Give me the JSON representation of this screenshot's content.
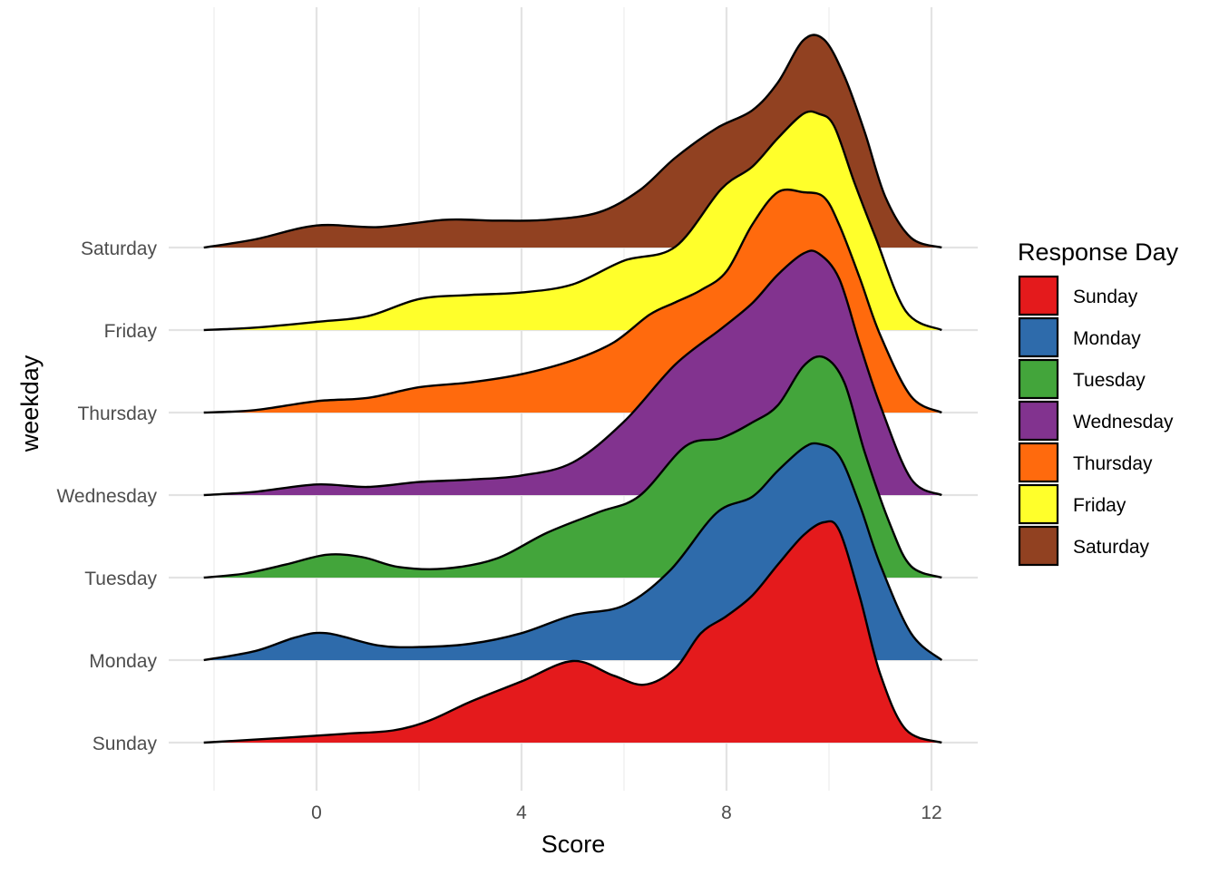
{
  "chart_data": {
    "type": "ridgeline",
    "xlabel": "Score",
    "ylabel": "weekday",
    "xlim": [
      -2.2,
      12.2
    ],
    "x_ticks": [
      0,
      4,
      8,
      12
    ],
    "x_gridlines": [
      -2,
      0,
      2,
      4,
      6,
      8,
      10,
      12
    ],
    "grid": true,
    "legend": {
      "title": "Response Day",
      "placement": "right",
      "entries": [
        "Sunday",
        "Monday",
        "Tuesday",
        "Wednesday",
        "Thursday",
        "Friday",
        "Saturday"
      ]
    },
    "categories": [
      "Sunday",
      "Monday",
      "Tuesday",
      "Wednesday",
      "Thursday",
      "Friday",
      "Saturday"
    ],
    "series": [
      {
        "name": "Sunday",
        "color": "#E41A1C",
        "points": [
          [
            -2.2,
            0.0
          ],
          [
            -0.6,
            0.06
          ],
          [
            0.6,
            0.11
          ],
          [
            1.5,
            0.15
          ],
          [
            2.2,
            0.27
          ],
          [
            3,
            0.5
          ],
          [
            4,
            0.75
          ],
          [
            5,
            1.0
          ],
          [
            5.8,
            0.82
          ],
          [
            6.4,
            0.71
          ],
          [
            7,
            0.91
          ],
          [
            7.5,
            1.34
          ],
          [
            8,
            1.55
          ],
          [
            8.5,
            1.8
          ],
          [
            9,
            2.18
          ],
          [
            9.5,
            2.54
          ],
          [
            9.9,
            2.7
          ],
          [
            10.2,
            2.6
          ],
          [
            10.6,
            1.79
          ],
          [
            11,
            0.84
          ],
          [
            11.5,
            0.16
          ],
          [
            12.2,
            0.0
          ]
        ]
      },
      {
        "name": "Monday",
        "color": "#2E6BAB",
        "points": [
          [
            -2.2,
            0.0
          ],
          [
            -1.2,
            0.11
          ],
          [
            -0.4,
            0.28
          ],
          [
            0.2,
            0.33
          ],
          [
            1.2,
            0.18
          ],
          [
            2,
            0.16
          ],
          [
            3,
            0.2
          ],
          [
            4,
            0.33
          ],
          [
            5,
            0.55
          ],
          [
            6,
            0.67
          ],
          [
            6.9,
            1.1
          ],
          [
            7.8,
            1.8
          ],
          [
            8.5,
            2.0
          ],
          [
            9,
            2.32
          ],
          [
            9.5,
            2.6
          ],
          [
            9.8,
            2.65
          ],
          [
            10.2,
            2.5
          ],
          [
            10.6,
            1.9
          ],
          [
            11,
            1.17
          ],
          [
            11.6,
            0.33
          ],
          [
            12.2,
            0.0
          ]
        ]
      },
      {
        "name": "Tuesday",
        "color": "#43A53B",
        "points": [
          [
            -2.2,
            0.0
          ],
          [
            -1.4,
            0.05
          ],
          [
            -0.6,
            0.16
          ],
          [
            0.2,
            0.28
          ],
          [
            0.9,
            0.25
          ],
          [
            1.6,
            0.13
          ],
          [
            2.5,
            0.11
          ],
          [
            3.5,
            0.23
          ],
          [
            4.5,
            0.55
          ],
          [
            5.5,
            0.8
          ],
          [
            6.3,
            1.0
          ],
          [
            7.2,
            1.61
          ],
          [
            7.9,
            1.71
          ],
          [
            8.5,
            1.9
          ],
          [
            9,
            2.11
          ],
          [
            9.5,
            2.59
          ],
          [
            9.9,
            2.7
          ],
          [
            10.3,
            2.39
          ],
          [
            10.7,
            1.53
          ],
          [
            11.2,
            0.64
          ],
          [
            11.6,
            0.14
          ],
          [
            12.2,
            0.0
          ]
        ]
      },
      {
        "name": "Wednesday",
        "color": "#82338F",
        "points": [
          [
            -2.2,
            0.0
          ],
          [
            -1.2,
            0.04
          ],
          [
            0,
            0.13
          ],
          [
            1,
            0.1
          ],
          [
            2,
            0.16
          ],
          [
            3,
            0.19
          ],
          [
            4,
            0.24
          ],
          [
            5,
            0.4
          ],
          [
            6,
            0.9
          ],
          [
            7,
            1.6
          ],
          [
            7.9,
            2.04
          ],
          [
            8.5,
            2.35
          ],
          [
            9,
            2.7
          ],
          [
            9.5,
            2.96
          ],
          [
            9.8,
            2.96
          ],
          [
            10.2,
            2.65
          ],
          [
            10.6,
            1.85
          ],
          [
            11,
            1.1
          ],
          [
            11.6,
            0.2
          ],
          [
            12.2,
            0.0
          ]
        ]
      },
      {
        "name": "Thursday",
        "color": "#FF6A0D",
        "points": [
          [
            -2.2,
            0.0
          ],
          [
            -1.2,
            0.03
          ],
          [
            0,
            0.14
          ],
          [
            1,
            0.18
          ],
          [
            2,
            0.31
          ],
          [
            3,
            0.37
          ],
          [
            4,
            0.47
          ],
          [
            5,
            0.64
          ],
          [
            5.8,
            0.86
          ],
          [
            6.5,
            1.2
          ],
          [
            7,
            1.35
          ],
          [
            7.5,
            1.5
          ],
          [
            8,
            1.73
          ],
          [
            8.5,
            2.3
          ],
          [
            9,
            2.7
          ],
          [
            9.5,
            2.7
          ],
          [
            9.9,
            2.64
          ],
          [
            10.2,
            2.3
          ],
          [
            10.6,
            1.65
          ],
          [
            11,
            0.95
          ],
          [
            11.6,
            0.2
          ],
          [
            12.2,
            0.0
          ]
        ]
      },
      {
        "name": "Friday",
        "color": "#FFFF2B",
        "points": [
          [
            -2.2,
            0.0
          ],
          [
            -1.2,
            0.03
          ],
          [
            0,
            0.1
          ],
          [
            1,
            0.17
          ],
          [
            2,
            0.38
          ],
          [
            3,
            0.43
          ],
          [
            4,
            0.46
          ],
          [
            5,
            0.56
          ],
          [
            6,
            0.85
          ],
          [
            7,
            1.02
          ],
          [
            7.9,
            1.73
          ],
          [
            8.5,
            2.0
          ],
          [
            9,
            2.35
          ],
          [
            9.5,
            2.65
          ],
          [
            9.8,
            2.65
          ],
          [
            10.1,
            2.5
          ],
          [
            10.5,
            1.8
          ],
          [
            10.9,
            1.15
          ],
          [
            11.5,
            0.23
          ],
          [
            12.2,
            0.0
          ]
        ]
      },
      {
        "name": "Saturday",
        "color": "#914121",
        "points": [
          [
            -2.2,
            0.0
          ],
          [
            -1.2,
            0.1
          ],
          [
            0,
            0.27
          ],
          [
            1.2,
            0.25
          ],
          [
            2.5,
            0.34
          ],
          [
            3.5,
            0.33
          ],
          [
            4.5,
            0.34
          ],
          [
            5.5,
            0.43
          ],
          [
            6.3,
            0.7
          ],
          [
            7,
            1.1
          ],
          [
            7.8,
            1.46
          ],
          [
            8.5,
            1.68
          ],
          [
            9,
            2.02
          ],
          [
            9.5,
            2.54
          ],
          [
            9.9,
            2.55
          ],
          [
            10.3,
            2.1
          ],
          [
            10.7,
            1.41
          ],
          [
            11.1,
            0.62
          ],
          [
            11.6,
            0.12
          ],
          [
            12.2,
            0.0
          ]
        ]
      }
    ]
  }
}
